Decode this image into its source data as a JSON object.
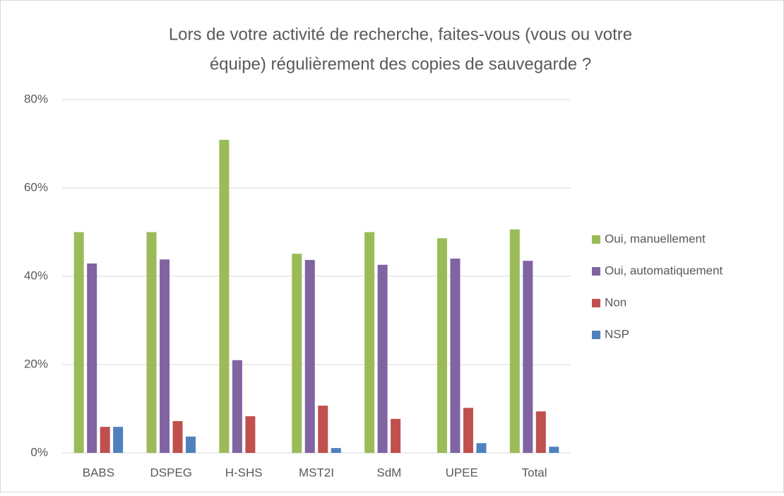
{
  "chart_data": {
    "type": "bar",
    "title": [
      "Lors de votre activité de recherche, faites-vous (vous ou votre",
      "équipe) régulièrement des copies de sauvegarde ?"
    ],
    "categories": [
      "BABS",
      "DSPEG",
      "H-SHS",
      "MST2I",
      "SdM",
      "UPEE",
      "Total"
    ],
    "series": [
      {
        "name": "Oui, manuellement",
        "color": "#9bbb59",
        "values": [
          50,
          50,
          70.9,
          45.1,
          50,
          48.6,
          50.6
        ]
      },
      {
        "name": "Oui, automatiquement",
        "color": "#8064a2",
        "values": [
          42.9,
          43.8,
          21,
          43.7,
          42.6,
          44,
          43.5
        ]
      },
      {
        "name": "Non",
        "color": "#c0504d",
        "values": [
          5.9,
          7.2,
          8.3,
          10.7,
          7.7,
          10.2,
          9.4
        ]
      },
      {
        "name": "NSP",
        "color": "#4f81bd",
        "values": [
          5.9,
          3.7,
          0,
          1.1,
          0,
          2.2,
          1.4
        ]
      }
    ],
    "ylim": [
      0,
      80
    ],
    "yticks": [
      {
        "value": 0,
        "label": "0%"
      },
      {
        "value": 20,
        "label": "20%"
      },
      {
        "value": 40,
        "label": "40%"
      },
      {
        "value": 60,
        "label": "60%"
      },
      {
        "value": 80,
        "label": "80%"
      }
    ],
    "grid": true,
    "legend": "right"
  }
}
